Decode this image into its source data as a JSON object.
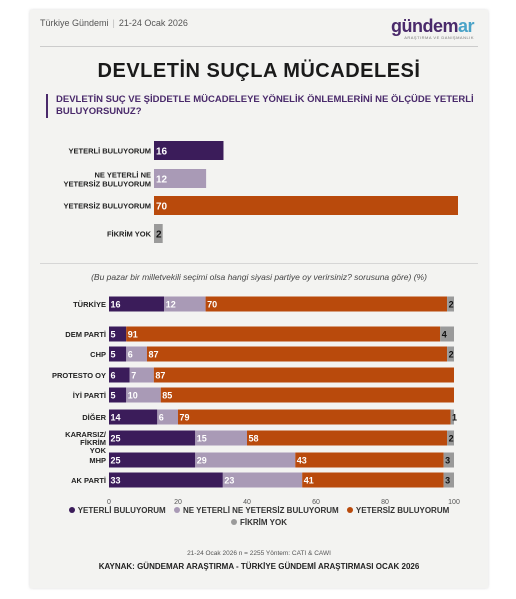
{
  "header": {
    "section": "Türkiye Gündemi",
    "date": "21-24 Ocak 2026",
    "logo_main": "gündem",
    "logo_accent": "ar",
    "logo_tagline": "ARAŞTIRMA VE DANIŞMANLIK"
  },
  "title": "DEVLETİN SUÇLA MÜCADELESİ",
  "question": "DEVLETİN SUÇ VE ŞİDDETLE MÜCADELEYE YÖNELİK ÖNLEMLERİNİ NE ÖLÇÜDE YETERLİ BULUYORSUNUZ?",
  "subquestion": "(Bu pazar bir milletvekili seçimi olsa hangi siyasi partiye oy verirsiniz? sorusuna göre) (%)",
  "colors": {
    "yeterli": "#3b1c5a",
    "ne_yeterli": "#a99ab6",
    "yetersiz": "#b94a0c",
    "fikrim_yok": "#9a9a9a"
  },
  "chart_data": [
    {
      "type": "bar",
      "orientation": "horizontal",
      "categories": [
        "YETERLİ BULUYORUM",
        "NE YETERLİ NE YETERSİZ BULUYORUM",
        "YETERSİZ BULUYORUM",
        "FİKRİM YOK"
      ],
      "values": [
        16,
        12,
        70,
        2
      ]
    },
    {
      "type": "bar",
      "orientation": "horizontal",
      "stacked": true,
      "categories": [
        "TÜRKİYE",
        "DEM PARTİ",
        "CHP",
        "PROTESTO OY",
        "İYİ PARTİ",
        "DİĞER",
        "KARARSIZ/ FİKRİM YOK",
        "MHP",
        "AK PARTİ"
      ],
      "series": [
        {
          "name": "YETERLİ BULUYORUM",
          "values": [
            16,
            5,
            5,
            6,
            5,
            14,
            25,
            25,
            33
          ]
        },
        {
          "name": "NE YETERLİ NE YETERSİZ BULUYORUM",
          "values": [
            12,
            0,
            6,
            7,
            10,
            6,
            15,
            29,
            23
          ]
        },
        {
          "name": "YETERSİZ BULUYORUM",
          "values": [
            70,
            91,
            87,
            87,
            85,
            79,
            58,
            43,
            41
          ]
        },
        {
          "name": "FİKRİM YOK",
          "values": [
            2,
            4,
            2,
            0,
            0,
            1,
            2,
            3,
            3
          ]
        }
      ],
      "xticks": [
        0,
        20,
        40,
        60,
        80,
        100
      ],
      "xlim": [
        0,
        100
      ]
    }
  ],
  "legend": [
    "YETERLİ BULUYORUM",
    "NE YETERLİ NE YETERSİZ BULUYORUM",
    "YETERSİZ BULUYORUM",
    "FİKRİM YOK"
  ],
  "method": "21-24 Ocak 2026 n = 2255 Yöntem: CATI & CAWI",
  "source": "KAYNAK: GÜNDEMAR ARAŞTIRMA - TÜRKİYE GÜNDEMİ ARAŞTIRMASI OCAK 2026"
}
